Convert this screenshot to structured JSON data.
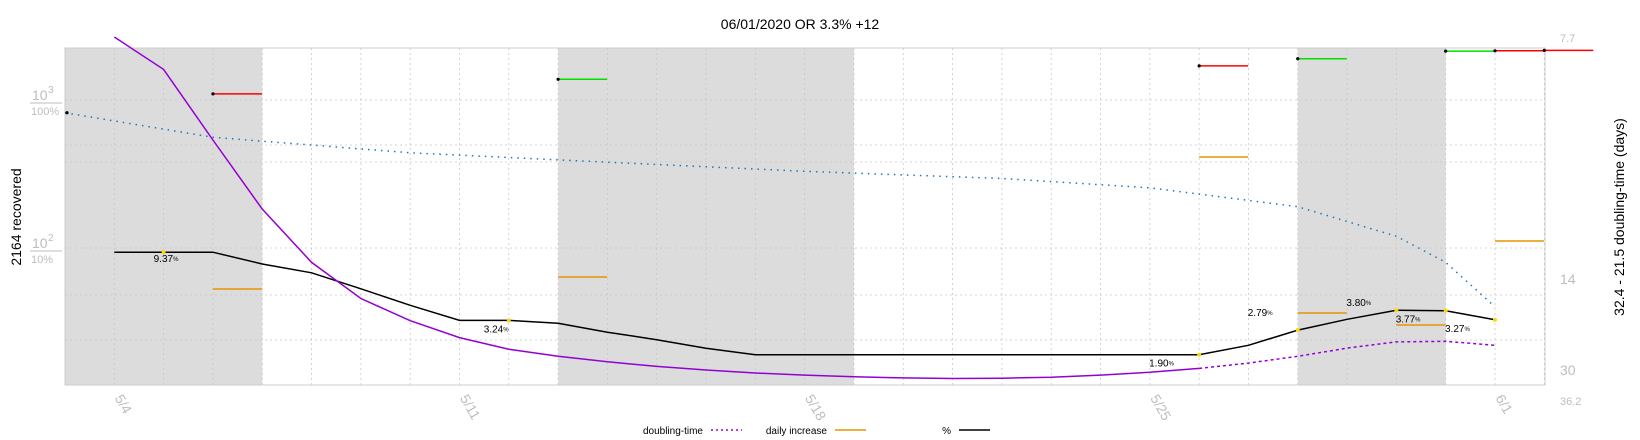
{
  "chart_data": {
    "type": "line",
    "title": "06/01/2020 OR 3.3% +12",
    "ylabel_left": "2164 recovered",
    "ylabel_right": "32.4 - 21.5 doubling-time (days)",
    "x_ticks": [
      "5/4",
      "5/11",
      "5/18",
      "5/25",
      "6/1"
    ],
    "x_range": [
      "2020-05-03",
      "2020-06-01"
    ],
    "left_axis": {
      "scale": "log",
      "ticks": [
        {
          "label": "10",
          "exp": "3",
          "pct": "100%"
        },
        {
          "label": "10",
          "exp": "2",
          "pct": "10%"
        }
      ]
    },
    "right_axis": {
      "scale": "reciprocal",
      "ticks": [
        "7.7",
        "14",
        "30",
        "36.2"
      ]
    },
    "grid": true,
    "weekend_shading": [
      [
        "2020-05-03",
        "2020-05-07"
      ],
      [
        "2020-05-13",
        "2020-05-19"
      ],
      [
        "2020-05-28",
        "2020-05-31"
      ]
    ],
    "series": [
      {
        "name": "doubling-time",
        "color": "#9400d3",
        "style": "solid-then-dotted",
        "x": [
          "2020-05-04",
          "2020-05-05",
          "2020-05-06",
          "2020-05-07",
          "2020-05-08",
          "2020-05-09",
          "2020-05-10",
          "2020-05-11",
          "2020-05-12",
          "2020-05-13",
          "2020-05-14",
          "2020-05-15",
          "2020-05-16",
          "2020-05-17",
          "2020-05-18",
          "2020-05-19",
          "2020-05-20",
          "2020-05-21",
          "2020-05-22",
          "2020-05-23",
          "2020-05-24",
          "2020-05-25",
          "2020-05-26",
          "2020-05-27",
          "2020-05-28",
          "2020-05-29",
          "2020-05-30",
          "2020-05-31",
          "2020-06-01"
        ],
        "values": [
          7.7,
          8.3,
          10.0,
          12.5,
          15.5,
          18.5,
          21.0,
          23.4,
          25.4,
          26.8,
          28.0,
          29.1,
          30.0,
          30.8,
          31.4,
          31.9,
          32.2,
          32.4,
          32.3,
          32.0,
          31.4,
          30.6,
          29.6,
          28.3,
          26.8,
          25.2,
          24.1,
          24.0,
          24.7
        ]
      },
      {
        "name": "%",
        "color": "#000000",
        "x": [
          "2020-05-04",
          "2020-05-05",
          "2020-05-06",
          "2020-05-07",
          "2020-05-08",
          "2020-05-09",
          "2020-05-10",
          "2020-05-11",
          "2020-05-12",
          "2020-05-13",
          "2020-05-14",
          "2020-05-15",
          "2020-05-16",
          "2020-05-17",
          "2020-05-18",
          "2020-05-19",
          "2020-05-20",
          "2020-05-21",
          "2020-05-22",
          "2020-05-23",
          "2020-05-24",
          "2020-05-25",
          "2020-05-26",
          "2020-05-27",
          "2020-05-28",
          "2020-05-29",
          "2020-05-30",
          "2020-05-31",
          "2020-06-01"
        ],
        "values": [
          9.37,
          9.37,
          9.37,
          7.8,
          6.8,
          5.3,
          4.1,
          3.24,
          3.24,
          3.1,
          2.7,
          2.4,
          2.1,
          1.9,
          1.9,
          1.9,
          1.9,
          1.9,
          1.9,
          1.9,
          1.9,
          1.9,
          1.9,
          2.2,
          2.79,
          3.3,
          3.8,
          3.77,
          3.27
        ]
      },
      {
        "name": "recovered",
        "color": "#1f77b4",
        "style": "dotted",
        "x": [
          "2020-05-03",
          "2020-05-06",
          "2020-05-10",
          "2020-05-14",
          "2020-05-18",
          "2020-05-22",
          "2020-05-25",
          "2020-05-28",
          "2020-05-30",
          "2020-05-31",
          "2020-06-01"
        ],
        "values": [
          820,
          560,
          440,
          380,
          330,
          295,
          255,
          190,
          120,
          80,
          40
        ]
      }
    ],
    "daily_increase": {
      "name": "daily increase",
      "color": "#e69500",
      "x": [
        "2020-05-06",
        "2020-05-13",
        "2020-05-26",
        "2020-05-28",
        "2020-05-30",
        "2020-06-01"
      ],
      "values": [
        8,
        9,
        19,
        6,
        5,
        12
      ]
    },
    "daily_marks": {
      "colors": {
        "red": "#ff0000",
        "green": "#00e000"
      },
      "x": [
        "2020-05-06",
        "2020-05-13",
        "2020-05-26",
        "2020-05-28",
        "2020-05-31",
        "2020-06-01",
        "2020-06-02"
      ],
      "values": [
        1100,
        1380,
        1700,
        1900,
        2140,
        2150,
        2164
      ],
      "color_names": [
        "red",
        "green",
        "red",
        "green",
        "green",
        "red",
        "red"
      ]
    },
    "point_labels": [
      {
        "x": "2020-05-05",
        "text": "9.37",
        "unit": "%"
      },
      {
        "x": "2020-05-12",
        "text": "3.24",
        "unit": "%"
      },
      {
        "x": "2020-05-26",
        "text": "1.90",
        "unit": "%"
      },
      {
        "x": "2020-05-28",
        "text": "2.79",
        "unit": "%"
      },
      {
        "x": "2020-05-30",
        "text": "3.80",
        "unit": "%"
      },
      {
        "x": "2020-05-31",
        "text": "3.77",
        "unit": "%"
      },
      {
        "x": "2020-06-01",
        "text": "3.27",
        "unit": "%"
      }
    ],
    "legend": {
      "placement": "bottom",
      "items": [
        {
          "label": "doubling-time",
          "color": "#9400d3",
          "style": "dotted"
        },
        {
          "label": "daily increase",
          "color": "#e69500",
          "style": "solid"
        },
        {
          "label": "%",
          "color": "#000000",
          "style": "solid"
        }
      ]
    }
  }
}
